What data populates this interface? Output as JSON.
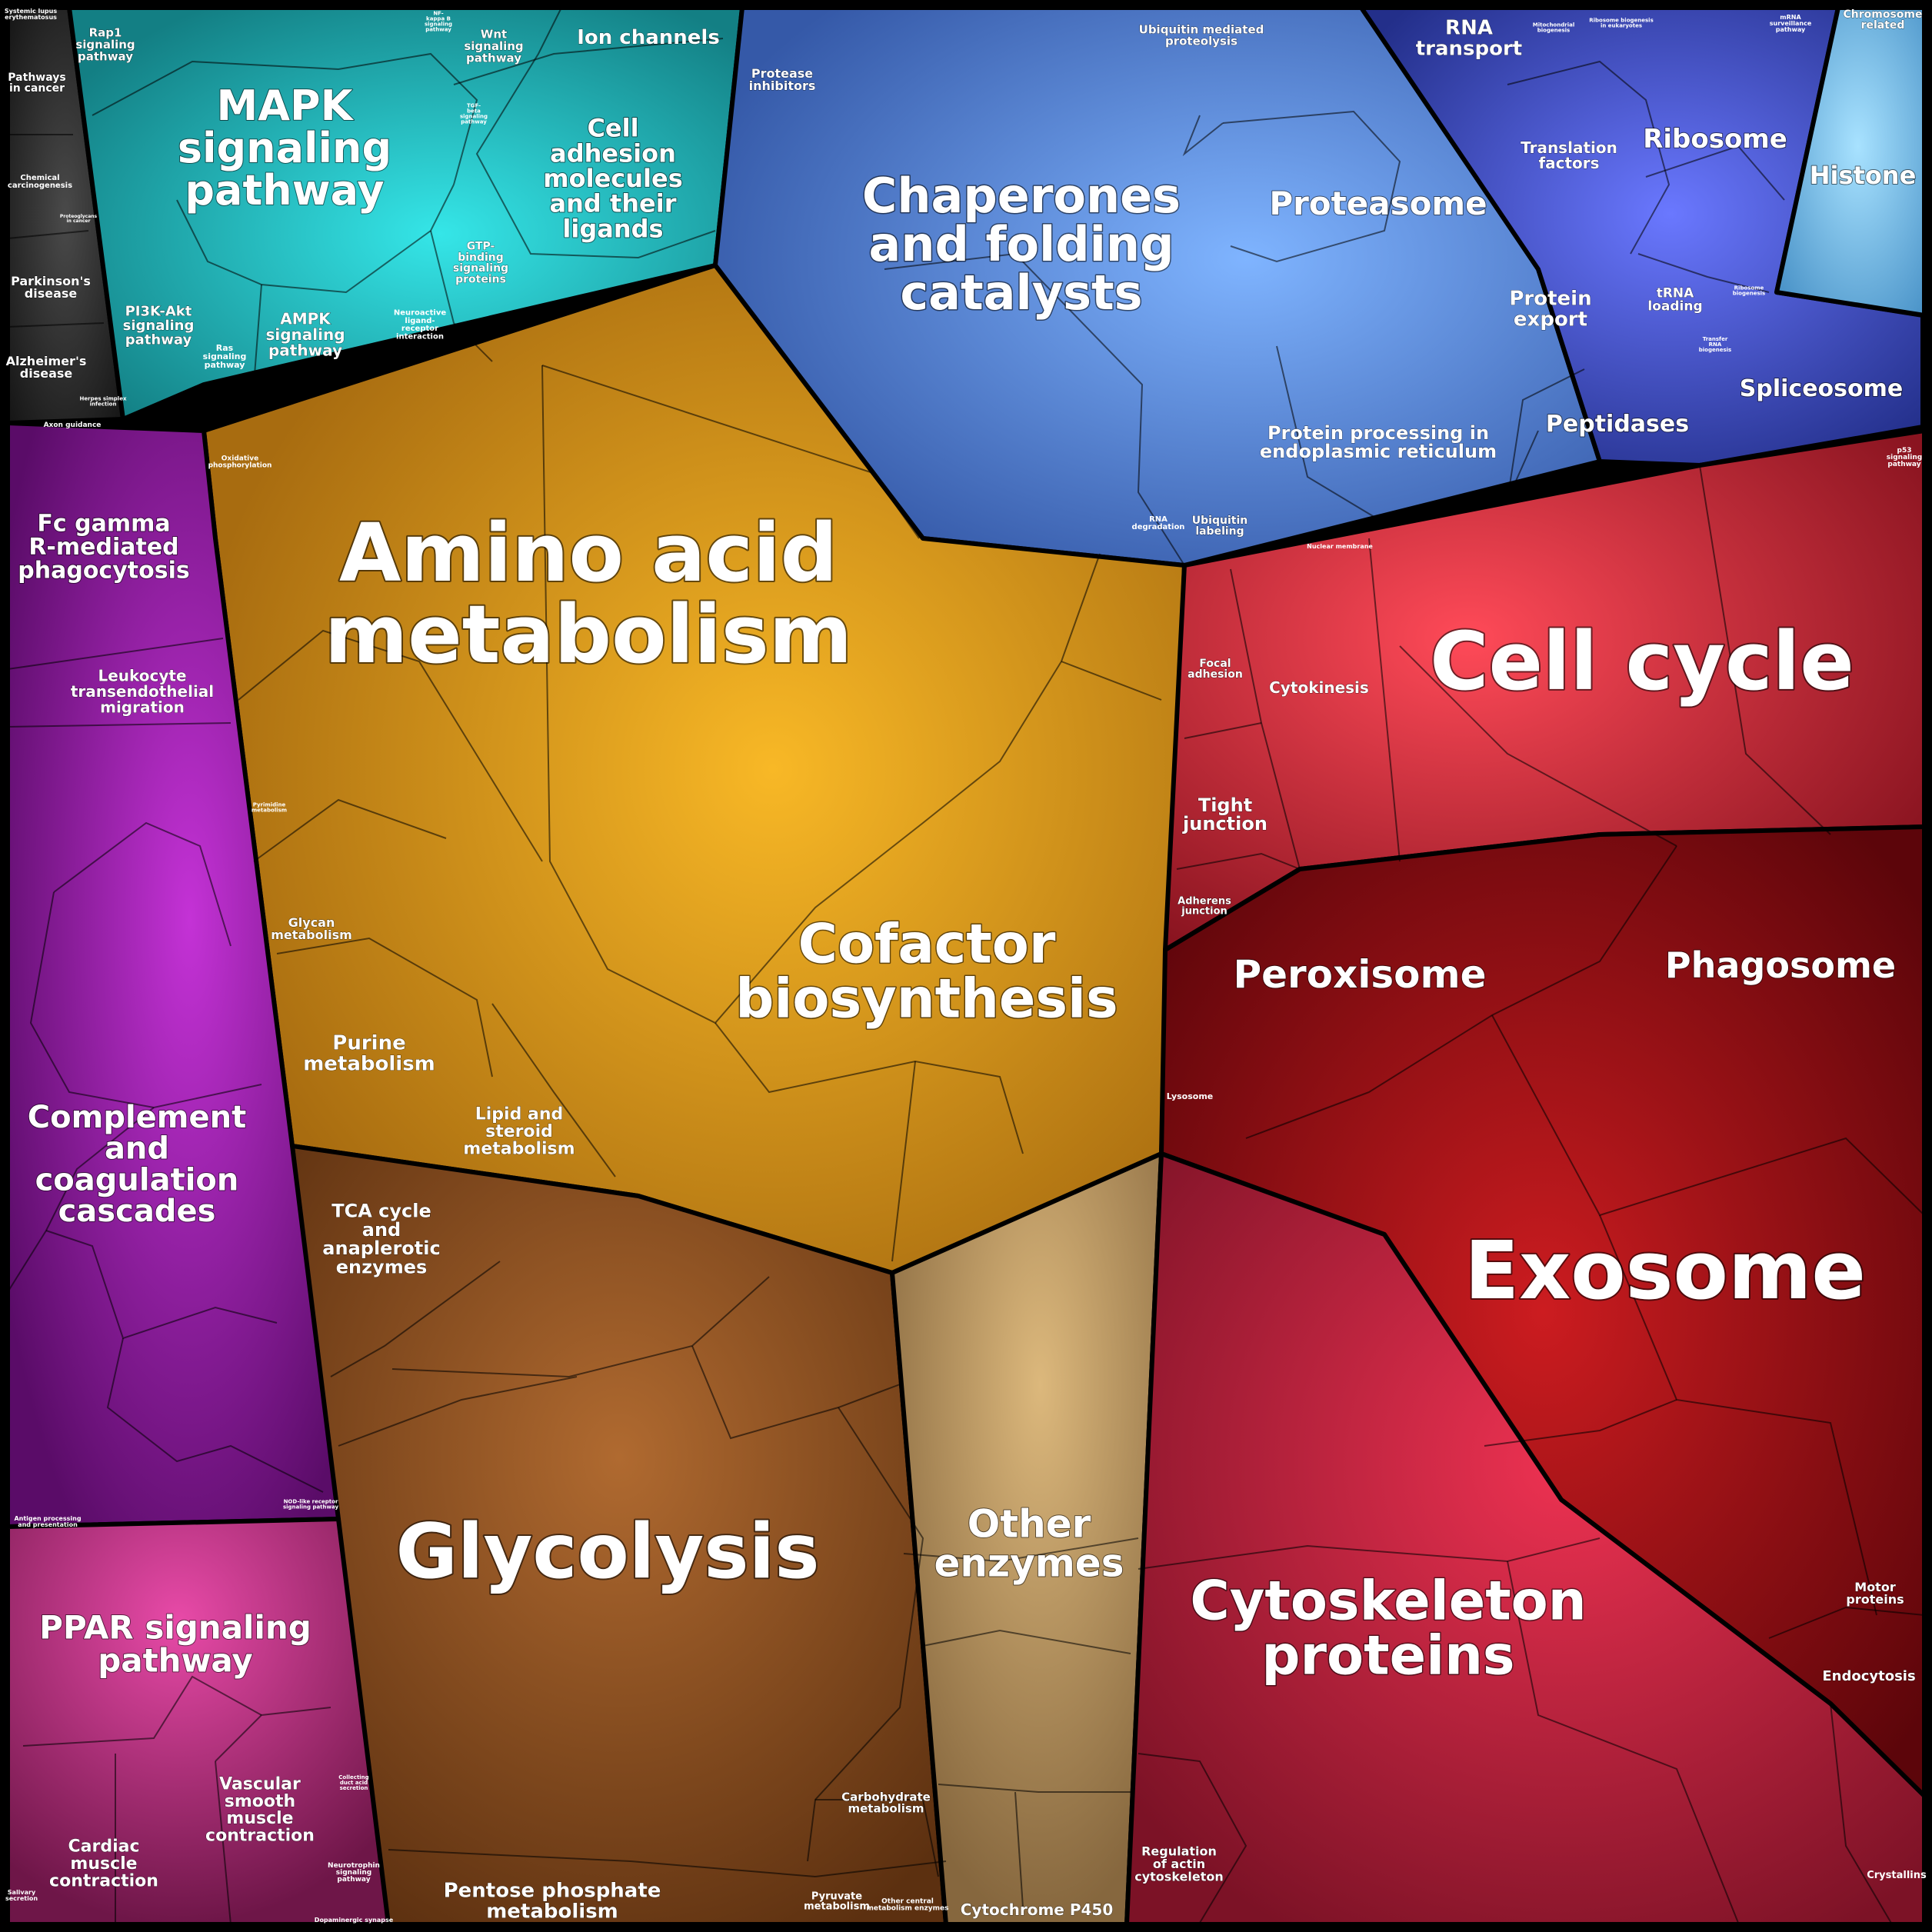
{
  "regions": [
    {
      "id": "cyan",
      "color": "#1fb5b8",
      "glow": "#35e6e8"
    },
    {
      "id": "dark",
      "color": "#2a2a2a",
      "glow": "#4a4a4a"
    },
    {
      "id": "blue",
      "color": "#4f7fd6",
      "glow": "#7fb4ff"
    },
    {
      "id": "navy",
      "color": "#3648b8",
      "glow": "#6a78ff"
    },
    {
      "id": "sky",
      "color": "#5aaee0",
      "glow": "#9fdcff"
    },
    {
      "id": "orange",
      "color": "#d4921c",
      "glow": "#f6b42a"
    },
    {
      "id": "brown",
      "color": "#8a4c1e",
      "glow": "#b06a30"
    },
    {
      "id": "tan",
      "color": "#a9875a",
      "glow": "#d8b478"
    },
    {
      "id": "purple",
      "color": "#8a1a98",
      "glow": "#c030d0"
    },
    {
      "id": "magenta",
      "color": "#b02d7a",
      "glow": "#e84aa8"
    },
    {
      "id": "red",
      "color": "#c42838",
      "glow": "#ff4a55"
    },
    {
      "id": "darkred",
      "color": "#8e0c14",
      "glow": "#c4181e"
    },
    {
      "id": "crimson",
      "color": "#b8203a",
      "glow": "#e8304e"
    }
  ],
  "labels": [
    {
      "text": "Amino acid metabolism",
      "lines": [
        "Amino acid",
        "metabolism"
      ]
    },
    {
      "text": "Cofactor biosynthesis",
      "lines": [
        "Cofactor",
        "biosynthesis"
      ]
    },
    {
      "text": "Glycolysis",
      "lines": [
        "Glycolysis"
      ]
    },
    {
      "text": "Other enzymes",
      "lines": [
        "Other",
        "enzymes"
      ]
    },
    {
      "text": "Cell cycle",
      "lines": [
        "Cell cycle"
      ]
    },
    {
      "text": "Exosome",
      "lines": [
        "Exosome"
      ]
    },
    {
      "text": "Cytoskeleton proteins",
      "lines": [
        "Cytoskeleton",
        "proteins"
      ]
    },
    {
      "text": "Chaperones and folding catalysts",
      "lines": [
        "Chaperones",
        "and folding",
        "catalysts"
      ]
    },
    {
      "text": "MAPK signaling pathway",
      "lines": [
        "MAPK",
        "signaling",
        "pathway"
      ]
    },
    {
      "text": "Complement and coagulation cascades",
      "lines": [
        "Complement",
        "and",
        "coagulation",
        "cascades"
      ]
    },
    {
      "text": "Proteasome",
      "lines": [
        "Proteasome"
      ]
    },
    {
      "text": "Peroxisome",
      "lines": [
        "Peroxisome"
      ]
    },
    {
      "text": "Phagosome",
      "lines": [
        "Phagosome"
      ]
    },
    {
      "text": "PPAR signaling pathway",
      "lines": [
        "PPAR signaling",
        "pathway"
      ]
    },
    {
      "text": "Ribosome",
      "lines": [
        "Ribosome"
      ]
    },
    {
      "text": "Histone",
      "lines": [
        "Histone"
      ]
    },
    {
      "text": "Spliceosome",
      "lines": [
        "Spliceosome"
      ]
    },
    {
      "text": "Peptidases",
      "lines": [
        "Peptidases"
      ]
    },
    {
      "text": "Cell adhesion molecules and their ligands",
      "lines": [
        "Cell",
        "adhesion",
        "molecules",
        "and their",
        "ligands"
      ]
    },
    {
      "text": "Fc gamma R-mediated phagocytosis",
      "lines": [
        "Fc gamma",
        "R-mediated",
        "phagocytosis"
      ]
    },
    {
      "text": "Ion channels",
      "lines": [
        "Ion channels"
      ]
    },
    {
      "text": "Protein export",
      "lines": [
        "Protein",
        "export"
      ]
    },
    {
      "text": "RNA transport",
      "lines": [
        "RNA",
        "transport"
      ]
    },
    {
      "text": "Protein processing in endoplasmic reticulum",
      "lines": [
        "Protein processing in",
        "endoplasmic reticulum"
      ]
    },
    {
      "text": "Translation factors",
      "lines": [
        "Translation",
        "factors"
      ]
    },
    {
      "text": "Purine metabolism",
      "lines": [
        "Purine",
        "metabolism"
      ]
    },
    {
      "text": "TCA cycle and anaplerotic enzymes",
      "lines": [
        "TCA cycle",
        "and",
        "anaplerotic",
        "enzymes"
      ]
    },
    {
      "text": "Lipid and steroid metabolism",
      "lines": [
        "Lipid and",
        "steroid",
        "metabolism"
      ]
    },
    {
      "text": "Pentose phosphate metabolism",
      "lines": [
        "Pentose phosphate",
        "metabolism"
      ]
    },
    {
      "text": "Vascular smooth muscle contraction",
      "lines": [
        "Vascular",
        "smooth",
        "muscle",
        "contraction"
      ]
    },
    {
      "text": "Cardiac muscle contraction",
      "lines": [
        "Cardiac",
        "muscle",
        "contraction"
      ]
    },
    {
      "text": "Leukocyte transendothelial migration",
      "lines": [
        "Leukocyte",
        "transendothelial",
        "migration"
      ]
    },
    {
      "text": "Tight junction",
      "lines": [
        "Tight",
        "junction"
      ]
    },
    {
      "text": "AMPK signaling pathway",
      "lines": [
        "AMPK",
        "signaling",
        "pathway"
      ]
    },
    {
      "text": "PI3K-Akt signaling pathway",
      "lines": [
        "PI3K-Akt",
        "signaling",
        "pathway"
      ]
    },
    {
      "text": "Cytochrome P450",
      "lines": [
        "Cytochrome P450"
      ]
    },
    {
      "text": "Cytokinesis",
      "lines": [
        "Cytokinesis"
      ]
    },
    {
      "text": "Glycan metabolism",
      "lines": [
        "Glycan",
        "metabolism"
      ]
    },
    {
      "text": "Carbohydrate metabolism",
      "lines": [
        "Carbohydrate",
        "metabolism"
      ]
    },
    {
      "text": "Regulation of actin cytoskeleton",
      "lines": [
        "Regulation",
        "of actin",
        "cytoskeleton"
      ]
    },
    {
      "text": "Endocytosis",
      "lines": [
        "Endocytosis"
      ]
    },
    {
      "text": "Motor proteins",
      "lines": [
        "Motor",
        "proteins"
      ]
    },
    {
      "text": "Parkinson's disease",
      "lines": [
        "Parkinson's",
        "disease"
      ]
    },
    {
      "text": "Alzheimer's disease",
      "lines": [
        "Alzheimer's",
        "disease"
      ]
    },
    {
      "text": "Pathways in cancer",
      "lines": [
        "Pathways",
        "in cancer"
      ]
    },
    {
      "text": "Rap1 signaling pathway",
      "lines": [
        "Rap1",
        "signaling",
        "pathway"
      ]
    },
    {
      "text": "Wnt signaling pathway",
      "lines": [
        "Wnt",
        "signaling",
        "pathway"
      ]
    },
    {
      "text": "Protease inhibitors",
      "lines": [
        "Protease",
        "inhibitors"
      ]
    },
    {
      "text": "Ubiquitin mediated proteolysis",
      "lines": [
        "Ubiquitin mediated",
        "proteolysis"
      ]
    },
    {
      "text": "tRNA loading",
      "lines": [
        "tRNA",
        "loading"
      ]
    },
    {
      "text": "Focal adhesion",
      "lines": [
        "Focal",
        "adhesion"
      ]
    },
    {
      "text": "Adherens junction",
      "lines": [
        "Adherens",
        "junction"
      ]
    },
    {
      "text": "Ubiquitin labeling",
      "lines": [
        "Ubiquitin",
        "labeling"
      ]
    },
    {
      "text": "GTP-binding signaling proteins",
      "lines": [
        "GTP-",
        "binding",
        "signaling",
        "proteins"
      ]
    },
    {
      "text": "Chromosome related",
      "lines": [
        "Chromosome",
        "related"
      ]
    },
    {
      "text": "Ras signaling pathway",
      "lines": [
        "Ras",
        "signaling",
        "pathway"
      ]
    },
    {
      "text": "Lysosome",
      "lines": [
        "Lysosome"
      ]
    },
    {
      "text": "Pyruvate metabolism",
      "lines": [
        "Pyruvate",
        "metabolism"
      ]
    },
    {
      "text": "Other central metabolism enzymes",
      "lines": [
        "Other central",
        "metabolism enzymes"
      ]
    },
    {
      "text": "Crystallins",
      "lines": [
        "Crystallins"
      ]
    },
    {
      "text": "Chemical carcinogenesis",
      "lines": [
        "Chemical",
        "carcinogenesis"
      ]
    },
    {
      "text": "RNA degradation",
      "lines": [
        "RNA",
        "degradation"
      ]
    },
    {
      "text": "Neuroactive ligand-receptor interaction",
      "lines": [
        "Neuroactive",
        "ligand-",
        "receptor",
        "interaction"
      ]
    },
    {
      "text": "Oxidative phosphorylation",
      "lines": [
        "Oxidative",
        "phosphorylation"
      ]
    },
    {
      "text": "Nuclear membrane",
      "lines": [
        "Nuclear membrane"
      ]
    },
    {
      "text": "Axon guidance",
      "lines": [
        "Axon guidance"
      ]
    },
    {
      "text": "Collecting duct acid secretion",
      "lines": [
        "Collecting",
        "duct acid",
        "secretion"
      ]
    },
    {
      "text": "Neurotrophin signaling pathway",
      "lines": [
        "Neurotrophin",
        "signaling",
        "pathway"
      ]
    },
    {
      "text": "Dopaminergic synapse",
      "lines": [
        "Dopaminergic synapse"
      ]
    },
    {
      "text": "Salivary secretion",
      "lines": [
        "Salivary",
        "secretion"
      ]
    },
    {
      "text": "p53 signaling pathway",
      "lines": [
        "p53",
        "signaling",
        "pathway"
      ]
    },
    {
      "text": "Systemic lupus erythematosus",
      "lines": [
        "Systemic lupus",
        "erythematosus"
      ]
    },
    {
      "text": "Antigen processing and presentation",
      "lines": [
        "Antigen processing",
        "and presentation"
      ]
    },
    {
      "text": "NOD-like receptor signaling pathway",
      "lines": [
        "NOD-like receptor",
        "signaling pathway"
      ]
    },
    {
      "text": "Pyrimidine metabolism",
      "lines": [
        "Pyrimidine",
        "metabolism"
      ]
    },
    {
      "text": "mRNA surveillance pathway",
      "lines": [
        "mRNA",
        "surveillance",
        "pathway"
      ]
    },
    {
      "text": "Transfer RNA biogenesis",
      "lines": [
        "Transfer",
        "RNA",
        "biogenesis"
      ]
    },
    {
      "text": "Ribosome biogenesis",
      "lines": [
        "Ribosome",
        "biogenesis"
      ]
    },
    {
      "text": "Mitochondrial biogenesis",
      "lines": [
        "Mitochondrial",
        "biogenesis"
      ]
    },
    {
      "text": "Ribosome biogenesis in eukaryotes",
      "lines": [
        "Ribosome biogenesis",
        "in eukaryotes"
      ]
    },
    {
      "text": "Herpes simplex infection",
      "lines": [
        "Herpes simplex",
        "infection"
      ]
    },
    {
      "text": "NF-kappa B signaling pathway",
      "lines": [
        "NF-",
        "kappa B",
        "signaling",
        "pathway"
      ]
    },
    {
      "text": "TGF-beta signaling pathway",
      "lines": [
        "TGF-",
        "beta",
        "signaling",
        "pathway"
      ]
    },
    {
      "text": "Proteoglycans in cancer",
      "lines": [
        "Proteoglycans",
        "in cancer"
      ]
    }
  ]
}
